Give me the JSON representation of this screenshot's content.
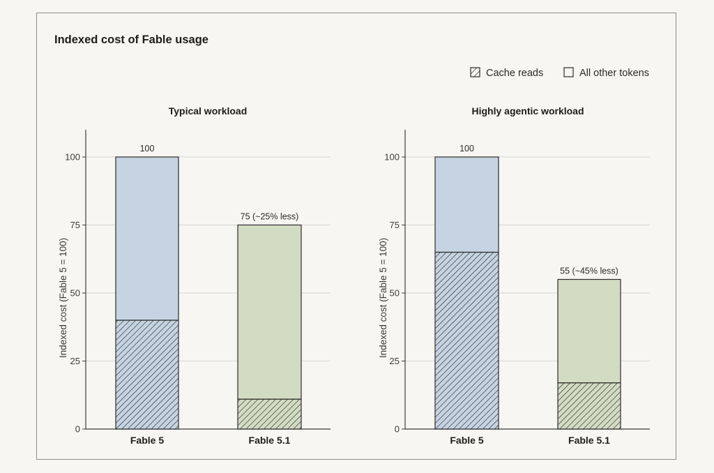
{
  "chart_data": {
    "type": "bar",
    "stacked": true,
    "title": "Indexed cost of Fable usage",
    "legend": {
      "placement": "top-right",
      "entries": [
        {
          "name": "Cache reads",
          "pattern": "hatched"
        },
        {
          "name": "All other tokens",
          "pattern": "solid"
        }
      ]
    },
    "grid": true,
    "ylabel": "Indexed cost (Fable 5 = 100)",
    "ylim": [
      0,
      100
    ],
    "yticks": [
      "0",
      "25",
      "50",
      "75",
      "100"
    ],
    "panels": [
      {
        "subtitle": "Typical workload",
        "categories": [
          "Fable 5",
          "Fable 5.1"
        ],
        "series": [
          {
            "name": "Cache reads",
            "values": [
              40,
              11
            ]
          },
          {
            "name": "All other tokens",
            "values": [
              60,
              64
            ]
          }
        ],
        "totals": [
          100,
          75
        ],
        "total_labels": [
          "100",
          "75 (~25% less)"
        ],
        "colors": [
          "#c5d3e2",
          "#d2dcc3"
        ]
      },
      {
        "subtitle": "Highly agentic workload",
        "categories": [
          "Fable 5",
          "Fable 5.1"
        ],
        "series": [
          {
            "name": "Cache reads",
            "values": [
              65,
              17
            ]
          },
          {
            "name": "All other tokens",
            "values": [
              35,
              38
            ]
          }
        ],
        "totals": [
          100,
          55
        ],
        "total_labels": [
          "100",
          "55 (~45% less)"
        ],
        "colors": [
          "#c5d3e2",
          "#d2dcc3"
        ]
      }
    ]
  }
}
